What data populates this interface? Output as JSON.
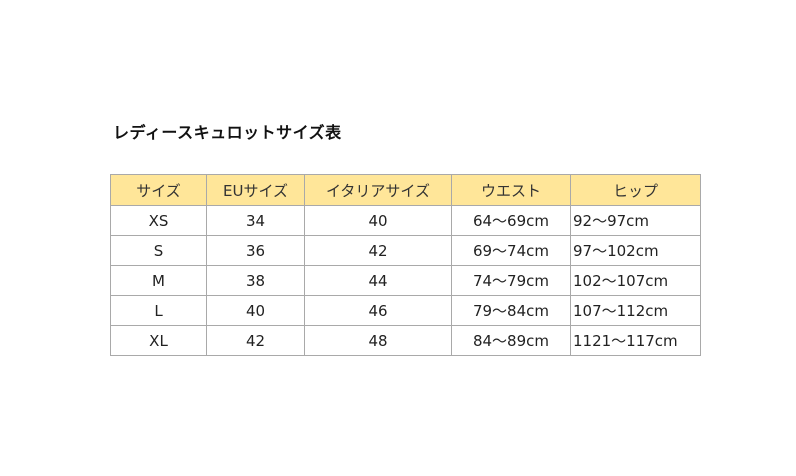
{
  "title": "レディースキュロットサイズ表",
  "header_color": "#ffe699",
  "table": {
    "headers": [
      "サイズ",
      "EUサイズ",
      "イタリアサイズ",
      "ウエスト",
      "ヒップ"
    ],
    "rows": [
      [
        "XS",
        "34",
        "40",
        "64〜69cm",
        "92〜97cm"
      ],
      [
        "S",
        "36",
        "42",
        "69〜74cm",
        "97〜102cm"
      ],
      [
        "M",
        "38",
        "44",
        "74〜79cm",
        "102〜107cm"
      ],
      [
        "L",
        "40",
        "46",
        "79〜84cm",
        "107〜112cm"
      ],
      [
        "XL",
        "42",
        "48",
        "84〜89cm",
        "1121〜117cm"
      ]
    ]
  }
}
